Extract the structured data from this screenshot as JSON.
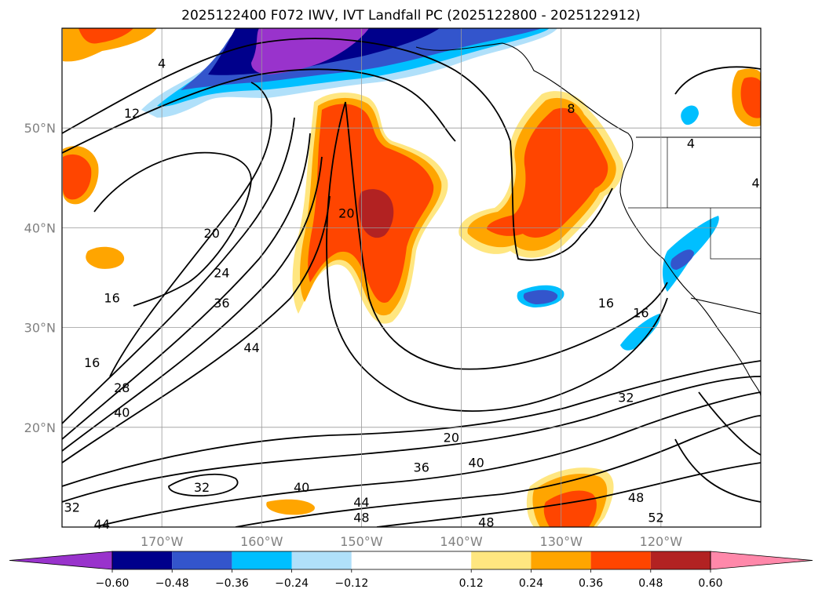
{
  "title": "2025122400 F072 IWV, IVT Landfall PC (2025122800 - 2025122912)",
  "map": {
    "lon_range": [
      -180,
      -110
    ],
    "lat_range": [
      10,
      60
    ],
    "lat_ticks": [
      {
        "value": 20,
        "label": "20°N"
      },
      {
        "value": 30,
        "label": "30°N"
      },
      {
        "value": 40,
        "label": "40°N"
      },
      {
        "value": 50,
        "label": "50°N"
      }
    ],
    "lon_ticks": [
      {
        "value": -170,
        "label": "170°W"
      },
      {
        "value": -160,
        "label": "160°W"
      },
      {
        "value": -150,
        "label": "150°W"
      },
      {
        "value": -140,
        "label": "140°W"
      },
      {
        "value": -130,
        "label": "130°W"
      },
      {
        "value": -120,
        "label": "120°W"
      }
    ],
    "grid": true,
    "contour_labels": [
      {
        "text": "4",
        "lon": -170,
        "lat": 56.5
      },
      {
        "text": "12",
        "lon": -173,
        "lat": 51.5
      },
      {
        "text": "20",
        "lon": -165,
        "lat": 39.5
      },
      {
        "text": "24",
        "lon": -164,
        "lat": 35.5
      },
      {
        "text": "36",
        "lon": -164,
        "lat": 32.5
      },
      {
        "text": "44",
        "lon": -161,
        "lat": 28
      },
      {
        "text": "16",
        "lon": -175,
        "lat": 33
      },
      {
        "text": "16",
        "lon": -177,
        "lat": 26.5
      },
      {
        "text": "28",
        "lon": -174,
        "lat": 24
      },
      {
        "text": "40",
        "lon": -174,
        "lat": 21.5
      },
      {
        "text": "20",
        "lon": -151.5,
        "lat": 41.5
      },
      {
        "text": "8",
        "lon": -129,
        "lat": 52
      },
      {
        "text": "4",
        "lon": -117,
        "lat": 48.5
      },
      {
        "text": "4",
        "lon": -110.5,
        "lat": 44.5
      },
      {
        "text": "16",
        "lon": -125.5,
        "lat": 32.5
      },
      {
        "text": "16",
        "lon": -122,
        "lat": 31.5
      },
      {
        "text": "20",
        "lon": -141,
        "lat": 19
      },
      {
        "text": "32",
        "lon": -123.5,
        "lat": 23
      },
      {
        "text": "36",
        "lon": -144,
        "lat": 16
      },
      {
        "text": "40",
        "lon": -138.5,
        "lat": 16.5
      },
      {
        "text": "40",
        "lon": -156,
        "lat": 14
      },
      {
        "text": "32",
        "lon": -166,
        "lat": 14
      },
      {
        "text": "44",
        "lon": -150,
        "lat": 12.5
      },
      {
        "text": "48",
        "lon": -150,
        "lat": 11
      },
      {
        "text": "48",
        "lon": -137.5,
        "lat": 10.5
      },
      {
        "text": "48",
        "lon": -122.5,
        "lat": 13
      },
      {
        "text": "52",
        "lon": -120.5,
        "lat": 11
      },
      {
        "text": "32",
        "lon": -179,
        "lat": 12
      },
      {
        "text": "44",
        "lon": -176,
        "lat": 10.3
      }
    ]
  },
  "colorbar": {
    "boundaries": [
      -0.72,
      -0.6,
      -0.48,
      -0.36,
      -0.24,
      -0.12,
      0.12,
      0.24,
      0.36,
      0.48,
      0.6,
      0.72
    ],
    "colors": [
      "#9933cc",
      "#00008b",
      "#3355cc",
      "#00bfff",
      "#b0e0fa",
      "#ffffff",
      "#ffe680",
      "#ffa500",
      "#ff4500",
      "#b22222",
      "#ff88aa"
    ],
    "tick_labels": [
      "−0.60",
      "−0.48",
      "−0.36",
      "−0.24",
      "−0.12",
      "0.12",
      "0.24",
      "0.36",
      "0.48",
      "0.60"
    ],
    "extend": "both"
  }
}
